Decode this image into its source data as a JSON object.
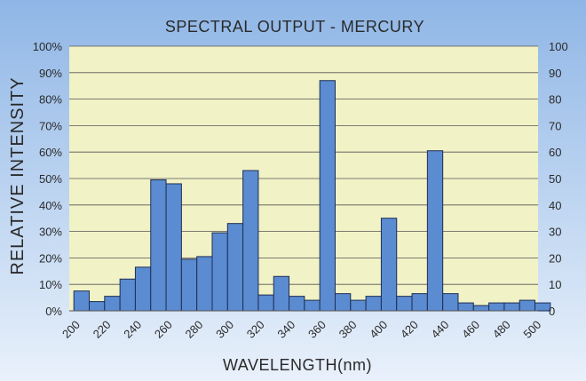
{
  "chart_data": {
    "type": "bar",
    "title": "SPECTRAL OUTPUT - MERCURY",
    "xlabel": "WAVELENGTH(nm)",
    "ylabel": "RELATIVE INTENSITY",
    "x_start": 200,
    "bin_width": 10,
    "xlim": [
      197,
      502
    ],
    "x_ticks": [
      "200",
      "220",
      "240",
      "260",
      "280",
      "300",
      "320",
      "340",
      "360",
      "380",
      "400",
      "420",
      "440",
      "460",
      "480",
      "500"
    ],
    "ylim": [
      0,
      100
    ],
    "y_ticks_left": [
      "0%",
      "10%",
      "20%",
      "30%",
      "40%",
      "50%",
      "60%",
      "70%",
      "80%",
      "90%",
      "100%"
    ],
    "y_ticks_right": [
      "0",
      "10",
      "20",
      "30",
      "40",
      "50",
      "60",
      "70",
      "80",
      "90",
      "100"
    ],
    "values": [
      7.5,
      3.5,
      5.5,
      12,
      16.5,
      49.5,
      48,
      19.5,
      20.5,
      29.5,
      33,
      53,
      6,
      13,
      5.5,
      4,
      87,
      6.5,
      4,
      5.5,
      35,
      5.5,
      6.5,
      60.5,
      6.5,
      3,
      2,
      3,
      3,
      4,
      3
    ],
    "grid": true,
    "colors": {
      "background_top": "#8fb6e6",
      "background_bottom": "#e9f1fb",
      "plot_area": "#f1f2c6",
      "bar_fill": "#5b8bd0",
      "bar_stroke": "#1f2f55",
      "gridline": "#555555",
      "text": "#2a2a2a"
    }
  }
}
